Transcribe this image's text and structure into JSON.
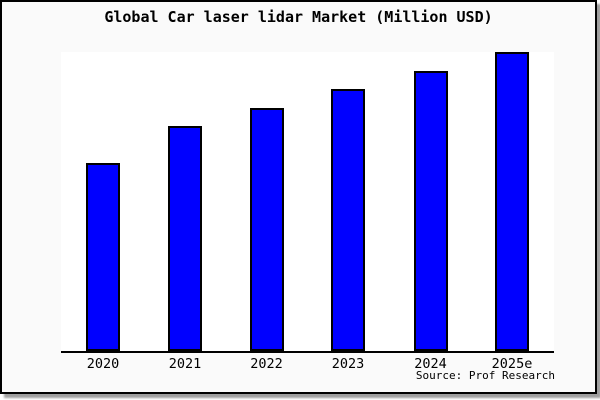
{
  "source_note": "Source: Prof Research",
  "colors": {
    "bar_fill": "#0000ff",
    "bar_border": "#000000",
    "figure_background": "#fafafa",
    "plot_background": "#ffffff",
    "frame_border": "#000000",
    "shadow": "#9e9e9e"
  },
  "chart_data": {
    "type": "bar",
    "title": "Global Car laser lidar Market (Million USD)",
    "categories": [
      "2020",
      "2021",
      "2022",
      "2023",
      "2024",
      "2025e"
    ],
    "values": [
      62.8,
      75.1,
      81.4,
      87.7,
      93.7,
      100
    ],
    "value_note": "No y-axis ticks or data labels shown; values estimated from bar pixel heights as percent of the tallest (2025e) bar",
    "xlabel": "",
    "ylabel": "",
    "ylim": [
      0,
      100
    ],
    "grid": false,
    "legend": "none",
    "bar_color": "#0000ff",
    "bar_border_color": "#000000"
  }
}
